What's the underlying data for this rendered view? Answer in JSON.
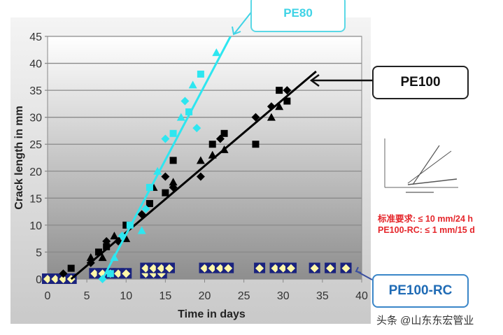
{
  "chart_data": {
    "type": "scatter",
    "xlabel": "Time in days",
    "ylabel": "Crack length in mm",
    "xlim": [
      0,
      40
    ],
    "ylim": [
      0,
      45
    ],
    "xticks": [
      0,
      5,
      10,
      15,
      20,
      25,
      30,
      35,
      40
    ],
    "yticks": [
      0,
      5,
      10,
      15,
      20,
      25,
      30,
      35,
      40,
      45
    ],
    "grid": "horizontal",
    "colors": {
      "PE80": "#2ee6f0",
      "PE100": "#000000",
      "PE100-RC_border": "#1a237e",
      "PE100-RC_fill": "#fff7a8"
    },
    "series": [
      {
        "name": "PE80",
        "points": [
          [
            7,
            0
          ],
          [
            8,
            1
          ],
          [
            8.5,
            4
          ],
          [
            9.5,
            8
          ],
          [
            10.5,
            10
          ],
          [
            12,
            9
          ],
          [
            12.5,
            13
          ],
          [
            13,
            17
          ],
          [
            14,
            20
          ],
          [
            15,
            26
          ],
          [
            16,
            27
          ],
          [
            17,
            30
          ],
          [
            17.5,
            33
          ],
          [
            18,
            31
          ],
          [
            18.5,
            36
          ],
          [
            19,
            28
          ],
          [
            19.5,
            38
          ],
          [
            21.5,
            42
          ]
        ],
        "trend": [
          [
            7,
            0
          ],
          [
            23.3,
            45
          ]
        ]
      },
      {
        "name": "PE100",
        "points": [
          [
            2,
            1
          ],
          [
            3,
            2
          ],
          [
            5.5,
            4
          ],
          [
            5.5,
            3
          ],
          [
            6.5,
            5
          ],
          [
            7,
            4
          ],
          [
            7.5,
            7
          ],
          [
            7.5,
            6
          ],
          [
            8.5,
            8
          ],
          [
            9,
            7
          ],
          [
            10,
            10
          ],
          [
            10,
            7.5
          ],
          [
            12,
            12
          ],
          [
            13,
            14
          ],
          [
            13.5,
            17
          ],
          [
            15,
            19
          ],
          [
            15,
            16
          ],
          [
            16,
            18
          ],
          [
            16,
            17
          ],
          [
            16,
            22
          ],
          [
            19.5,
            22
          ],
          [
            19.5,
            19
          ],
          [
            21,
            25
          ],
          [
            21,
            23
          ],
          [
            22,
            26
          ],
          [
            22.5,
            27
          ],
          [
            22.5,
            24
          ],
          [
            26.5,
            30
          ],
          [
            26.5,
            25
          ],
          [
            28.5,
            30
          ],
          [
            28.5,
            32
          ],
          [
            29.5,
            35
          ],
          [
            29.5,
            32
          ],
          [
            30.5,
            35
          ],
          [
            30.5,
            33
          ]
        ],
        "trend": [
          [
            3,
            0
          ],
          [
            34.2,
            38.5
          ]
        ]
      },
      {
        "name": "PE100-RC",
        "points": [
          [
            0,
            0
          ],
          [
            1,
            0
          ],
          [
            2,
            0
          ],
          [
            3,
            0
          ],
          [
            6,
            1
          ],
          [
            7,
            1
          ],
          [
            8,
            1
          ],
          [
            9,
            1
          ],
          [
            10,
            1
          ],
          [
            12.5,
            1
          ],
          [
            13.5,
            1
          ],
          [
            14.5,
            1
          ],
          [
            12.5,
            2
          ],
          [
            13.5,
            2
          ],
          [
            14.5,
            2
          ],
          [
            15.5,
            2
          ],
          [
            20,
            2
          ],
          [
            21,
            2
          ],
          [
            22,
            2
          ],
          [
            23,
            2
          ],
          [
            27,
            2
          ],
          [
            29,
            2
          ],
          [
            30,
            2
          ],
          [
            31,
            2
          ],
          [
            34,
            2
          ],
          [
            36,
            2
          ],
          [
            38,
            2
          ]
        ]
      }
    ],
    "annotations": {
      "pe80": "PE80",
      "pe100": "PE100",
      "pe100rc": "PE100-RC"
    }
  },
  "requirements": {
    "line1": "标准要求: ≤ 10 mm/24 h",
    "line2": "PE100-RC: ≤ 1 mm/15 d"
  },
  "watermark": "头条 @山东东宏管业",
  "icons": {
    "inset": "crack-growth-inset-chart"
  }
}
